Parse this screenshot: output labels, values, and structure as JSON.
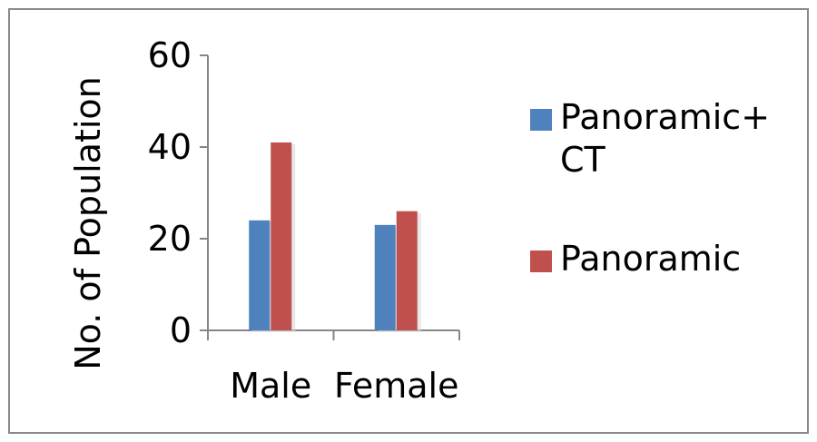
{
  "chart_data": {
    "type": "bar",
    "categories": [
      "Male",
      "Female"
    ],
    "series": [
      {
        "name": "Panoramic+ CT",
        "name_lines": [
          "Panoramic+",
          "CT"
        ],
        "values": [
          24,
          23
        ],
        "color": "#4f81bd"
      },
      {
        "name": "Panoramic",
        "name_lines": [
          "Panoramic"
        ],
        "values": [
          41,
          26
        ],
        "color": "#c0504d"
      }
    ],
    "ylabel": "No. of Population",
    "xlabel": "",
    "ylim": [
      0,
      60
    ],
    "yticks": [
      0,
      20,
      40,
      60
    ],
    "ytick_labels": [
      "0",
      "20",
      "40",
      "60"
    ],
    "grid": false,
    "legend_position": "right"
  }
}
